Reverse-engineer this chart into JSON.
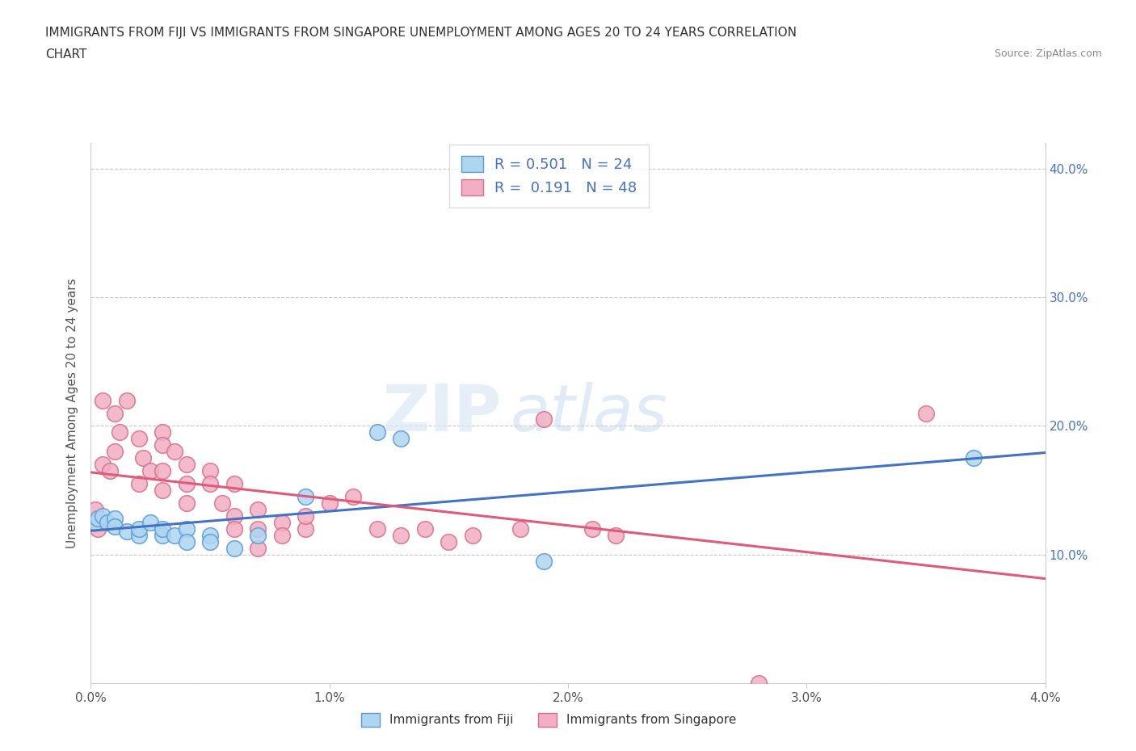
{
  "title_line1": "IMMIGRANTS FROM FIJI VS IMMIGRANTS FROM SINGAPORE UNEMPLOYMENT AMONG AGES 20 TO 24 YEARS CORRELATION",
  "title_line2": "CHART",
  "source_text": "Source: ZipAtlas.com",
  "ylabel": "Unemployment Among Ages 20 to 24 years",
  "xlim": [
    0.0,
    0.04
  ],
  "ylim": [
    0.0,
    0.42
  ],
  "x_ticks": [
    0.0,
    0.01,
    0.02,
    0.03,
    0.04
  ],
  "x_tick_labels": [
    "0.0%",
    "1.0%",
    "2.0%",
    "3.0%",
    "4.0%"
  ],
  "y_ticks": [
    0.0,
    0.1,
    0.2,
    0.3,
    0.4
  ],
  "y_tick_labels": [
    "",
    "10.0%",
    "20.0%",
    "30.0%",
    "40.0%"
  ],
  "fiji_color": "#aed6f1",
  "fiji_edge_color": "#5b9bd5",
  "singapore_color": "#f1aec4",
  "singapore_edge_color": "#d9708a",
  "fiji_R": "0.501",
  "fiji_N": "24",
  "singapore_R": "0.191",
  "singapore_N": "48",
  "fiji_line_color": "#4472c4",
  "singapore_line_color": "#e05a7a",
  "watermark_zip": "ZIP",
  "watermark_atlas": "atlas",
  "background_color": "#ffffff",
  "grid_color": "#c8c8c8",
  "fiji_scatter_x": [
    0.0002,
    0.0003,
    0.0005,
    0.0007,
    0.001,
    0.001,
    0.0015,
    0.002,
    0.002,
    0.0025,
    0.003,
    0.003,
    0.0035,
    0.004,
    0.004,
    0.005,
    0.005,
    0.006,
    0.007,
    0.009,
    0.012,
    0.013,
    0.019,
    0.037
  ],
  "fiji_scatter_y": [
    0.125,
    0.128,
    0.13,
    0.125,
    0.128,
    0.122,
    0.118,
    0.115,
    0.12,
    0.125,
    0.115,
    0.12,
    0.115,
    0.12,
    0.11,
    0.115,
    0.11,
    0.105,
    0.115,
    0.145,
    0.195,
    0.19,
    0.095,
    0.175
  ],
  "singapore_scatter_x": [
    0.0001,
    0.0002,
    0.0003,
    0.0005,
    0.0005,
    0.0008,
    0.001,
    0.001,
    0.0012,
    0.0015,
    0.002,
    0.002,
    0.0022,
    0.0025,
    0.003,
    0.003,
    0.003,
    0.003,
    0.0035,
    0.004,
    0.004,
    0.004,
    0.005,
    0.005,
    0.0055,
    0.006,
    0.006,
    0.006,
    0.007,
    0.007,
    0.007,
    0.008,
    0.008,
    0.009,
    0.009,
    0.01,
    0.011,
    0.012,
    0.013,
    0.014,
    0.015,
    0.016,
    0.018,
    0.019,
    0.021,
    0.022,
    0.028,
    0.035
  ],
  "singapore_scatter_y": [
    0.125,
    0.135,
    0.12,
    0.22,
    0.17,
    0.165,
    0.21,
    0.18,
    0.195,
    0.22,
    0.19,
    0.155,
    0.175,
    0.165,
    0.195,
    0.185,
    0.165,
    0.15,
    0.18,
    0.17,
    0.155,
    0.14,
    0.165,
    0.155,
    0.14,
    0.155,
    0.13,
    0.12,
    0.135,
    0.12,
    0.105,
    0.125,
    0.115,
    0.12,
    0.13,
    0.14,
    0.145,
    0.12,
    0.115,
    0.12,
    0.11,
    0.115,
    0.12,
    0.205,
    0.12,
    0.115,
    0.0,
    0.21
  ]
}
